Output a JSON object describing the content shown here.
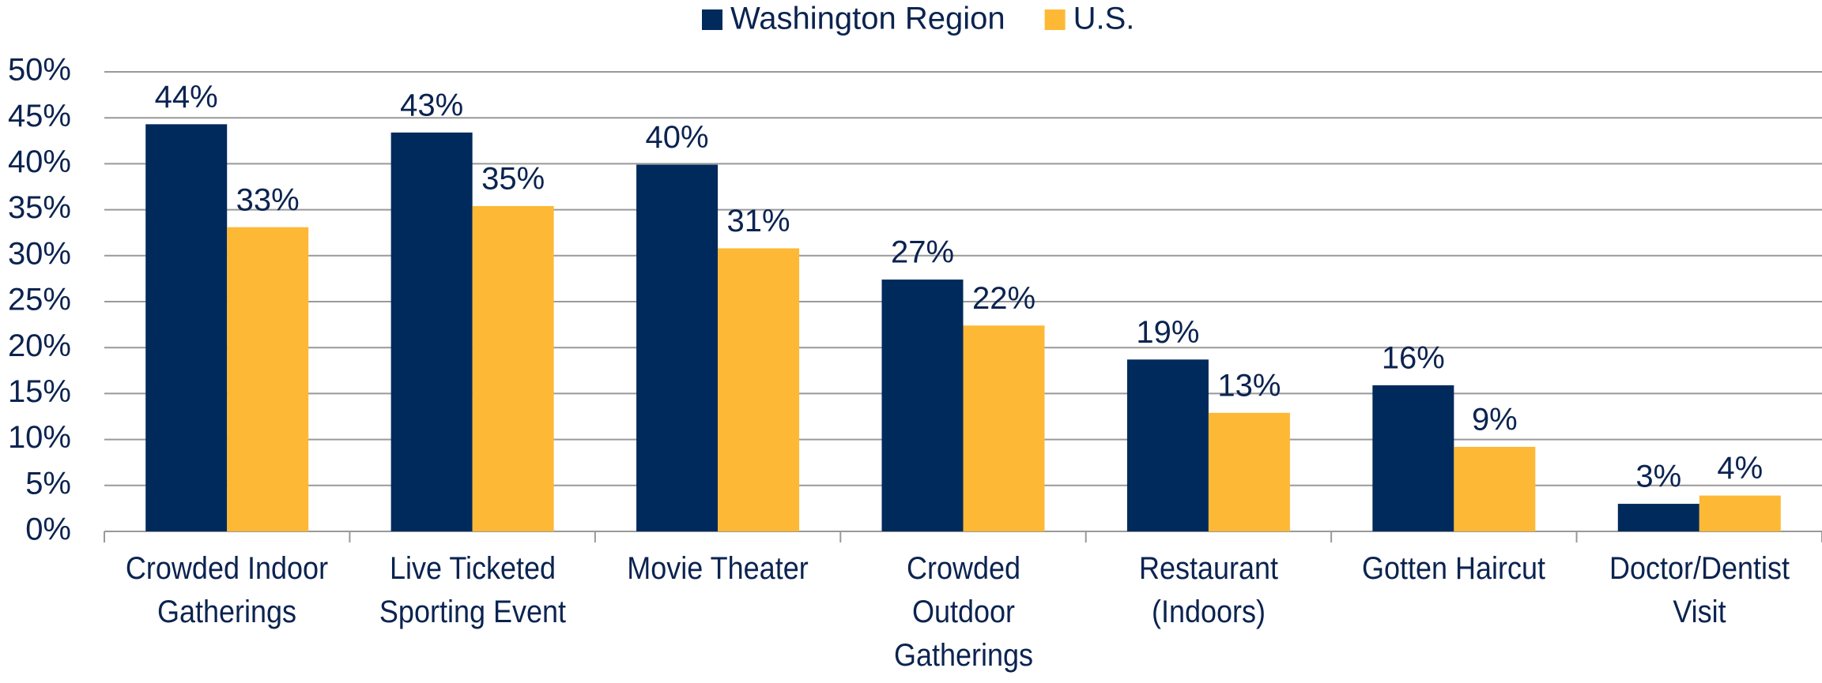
{
  "chart_data": {
    "type": "bar",
    "categories": [
      "Crowded Indoor\nGatherings",
      "Live Ticketed\nSporting Event",
      "Movie Theater",
      "Crowded\nOutdoor\nGatherings",
      "Restaurant\n(Indoors)",
      "Gotten Haircut",
      "Doctor/Dentist\nVisit"
    ],
    "series": [
      {
        "name": "Washington Region",
        "color": "#002a5c",
        "values": [
          44.3,
          43.4,
          39.9,
          27.4,
          18.7,
          15.9,
          3.0
        ],
        "value_labels": [
          "44%",
          "43%",
          "40%",
          "27%",
          "19%",
          "16%",
          "3%"
        ]
      },
      {
        "name": "U.S.",
        "color": "#fdb935",
        "values": [
          33.1,
          35.4,
          30.8,
          22.4,
          12.9,
          9.2,
          3.9
        ],
        "value_labels": [
          "33%",
          "35%",
          "31%",
          "22%",
          "13%",
          "9%",
          "4%"
        ]
      }
    ],
    "ylim": [
      0,
      50
    ],
    "yticks": [
      {
        "value": 0,
        "label": "0%"
      },
      {
        "value": 5,
        "label": "5%"
      },
      {
        "value": 10,
        "label": "10%"
      },
      {
        "value": 15,
        "label": "15%"
      },
      {
        "value": 20,
        "label": "20%"
      },
      {
        "value": 25,
        "label": "25%"
      },
      {
        "value": 30,
        "label": "30%"
      },
      {
        "value": 35,
        "label": "35%"
      },
      {
        "value": 40,
        "label": "40%"
      },
      {
        "value": 45,
        "label": "45%"
      },
      {
        "value": 50,
        "label": "50%"
      }
    ],
    "grid": true,
    "legend": "top"
  }
}
